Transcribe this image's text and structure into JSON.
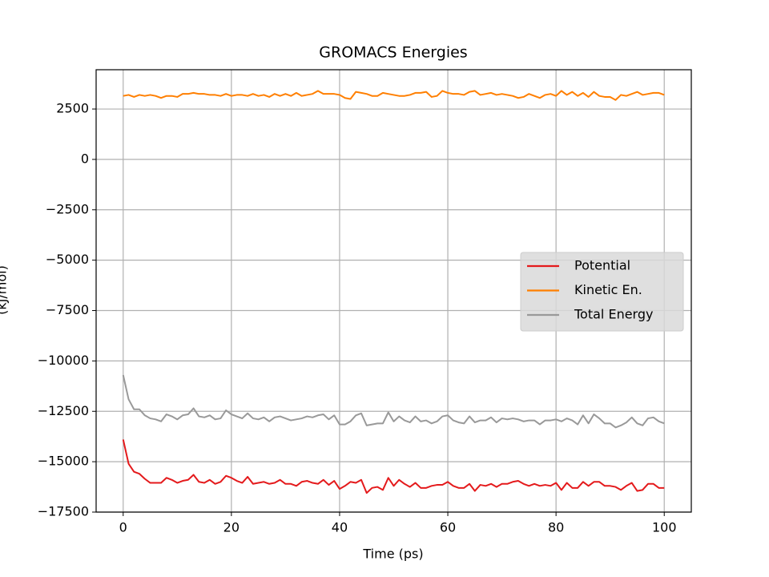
{
  "chart_data": {
    "type": "line",
    "title": "GROMACS Energies",
    "x_label": "Time (ps)",
    "y_label": "(kJ/mol)",
    "x": [
      0,
      1,
      2,
      3,
      4,
      5,
      6,
      7,
      8,
      9,
      10,
      11,
      12,
      13,
      14,
      15,
      16,
      17,
      18,
      19,
      20,
      21,
      22,
      23,
      24,
      25,
      26,
      27,
      28,
      29,
      30,
      31,
      32,
      33,
      34,
      35,
      36,
      37,
      38,
      39,
      40,
      41,
      42,
      43,
      44,
      45,
      46,
      47,
      48,
      49,
      50,
      51,
      52,
      53,
      54,
      55,
      56,
      57,
      58,
      59,
      60,
      61,
      62,
      63,
      64,
      65,
      66,
      67,
      68,
      69,
      70,
      71,
      72,
      73,
      74,
      75,
      76,
      77,
      78,
      79,
      80,
      81,
      82,
      83,
      84,
      85,
      86,
      87,
      88,
      89,
      90,
      91,
      92,
      93,
      94,
      95,
      96,
      97,
      98,
      99,
      100
    ],
    "series": [
      {
        "name": "Potential",
        "color": "#e41a1c",
        "values": [
          -13900,
          -15100,
          -15500,
          -15600,
          -15850,
          -16050,
          -16050,
          -16050,
          -15800,
          -15900,
          -16050,
          -15950,
          -15900,
          -15650,
          -16000,
          -16050,
          -15900,
          -16100,
          -16000,
          -15700,
          -15800,
          -15950,
          -16050,
          -15750,
          -16100,
          -16050,
          -16000,
          -16100,
          -16050,
          -15900,
          -16100,
          -16100,
          -16200,
          -16000,
          -15950,
          -16050,
          -16100,
          -15900,
          -16150,
          -15950,
          -16350,
          -16200,
          -16000,
          -16050,
          -15900,
          -16550,
          -16300,
          -16250,
          -16400,
          -15800,
          -16200,
          -15900,
          -16100,
          -16250,
          -16050,
          -16300,
          -16300,
          -16200,
          -16150,
          -16150,
          -16000,
          -16200,
          -16300,
          -16300,
          -16100,
          -16450,
          -16150,
          -16200,
          -16100,
          -16250,
          -16100,
          -16100,
          -16000,
          -15950,
          -16100,
          -16200,
          -16100,
          -16200,
          -16150,
          -16200,
          -16050,
          -16400,
          -16050,
          -16300,
          -16300,
          -16000,
          -16200,
          -16000,
          -16000,
          -16200,
          -16200,
          -16250,
          -16400,
          -16200,
          -16050,
          -16450,
          -16400,
          -16100,
          -16100,
          -16300,
          -16300
        ]
      },
      {
        "name": "Kinetic En.",
        "color": "#ff7f00",
        "values": [
          3150,
          3200,
          3100,
          3200,
          3150,
          3200,
          3150,
          3050,
          3150,
          3150,
          3100,
          3250,
          3250,
          3300,
          3250,
          3250,
          3200,
          3200,
          3150,
          3250,
          3150,
          3200,
          3200,
          3150,
          3250,
          3150,
          3200,
          3100,
          3250,
          3150,
          3250,
          3150,
          3300,
          3150,
          3200,
          3250,
          3400,
          3250,
          3250,
          3250,
          3200,
          3050,
          3000,
          3350,
          3300,
          3250,
          3150,
          3150,
          3300,
          3250,
          3200,
          3150,
          3150,
          3200,
          3300,
          3300,
          3350,
          3100,
          3150,
          3400,
          3300,
          3250,
          3250,
          3200,
          3350,
          3400,
          3200,
          3250,
          3300,
          3200,
          3250,
          3200,
          3150,
          3050,
          3100,
          3250,
          3150,
          3050,
          3200,
          3250,
          3150,
          3400,
          3200,
          3350,
          3150,
          3300,
          3100,
          3350,
          3150,
          3100,
          3100,
          2950,
          3200,
          3150,
          3250,
          3350,
          3200,
          3250,
          3300,
          3300,
          3200
        ]
      },
      {
        "name": "Total Energy",
        "color": "#999999",
        "values": [
          -10700,
          -11900,
          -12400,
          -12400,
          -12700,
          -12850,
          -12900,
          -13000,
          -12650,
          -12750,
          -12900,
          -12700,
          -12650,
          -12350,
          -12750,
          -12800,
          -12700,
          -12900,
          -12850,
          -12450,
          -12650,
          -12750,
          -12850,
          -12600,
          -12850,
          -12900,
          -12800,
          -13000,
          -12800,
          -12750,
          -12850,
          -12950,
          -12900,
          -12850,
          -12750,
          -12800,
          -12700,
          -12650,
          -12900,
          -12700,
          -13150,
          -13150,
          -13000,
          -12700,
          -12600,
          -13200,
          -13150,
          -13100,
          -13100,
          -12550,
          -13000,
          -12750,
          -12950,
          -13050,
          -12750,
          -13000,
          -12950,
          -13100,
          -13000,
          -12750,
          -12700,
          -12950,
          -13050,
          -13100,
          -12750,
          -13050,
          -12950,
          -12950,
          -12800,
          -13050,
          -12850,
          -12900,
          -12850,
          -12900,
          -13000,
          -12950,
          -12950,
          -13150,
          -12950,
          -12950,
          -12900,
          -13000,
          -12850,
          -12950,
          -13150,
          -12700,
          -13100,
          -12650,
          -12850,
          -13100,
          -13100,
          -13300,
          -13200,
          -13050,
          -12800,
          -13100,
          -13200,
          -12850,
          -12800,
          -13000,
          -13100
        ]
      }
    ],
    "xlim": [
      -5,
      105
    ],
    "xticks": [
      0,
      20,
      40,
      60,
      80,
      100
    ],
    "ylim": [
      -17500,
      4450
    ],
    "yticks": [
      {
        "value": -17500,
        "label": "−17500"
      },
      {
        "value": -15000,
        "label": "−15000"
      },
      {
        "value": -12500,
        "label": "−12500"
      },
      {
        "value": -10000,
        "label": "−10000"
      },
      {
        "value": -7500,
        "label": "−7500"
      },
      {
        "value": -5000,
        "label": "−5000"
      },
      {
        "value": -2500,
        "label": "−2500"
      },
      0,
      2500
    ],
    "grid": true,
    "legend": "center right"
  }
}
